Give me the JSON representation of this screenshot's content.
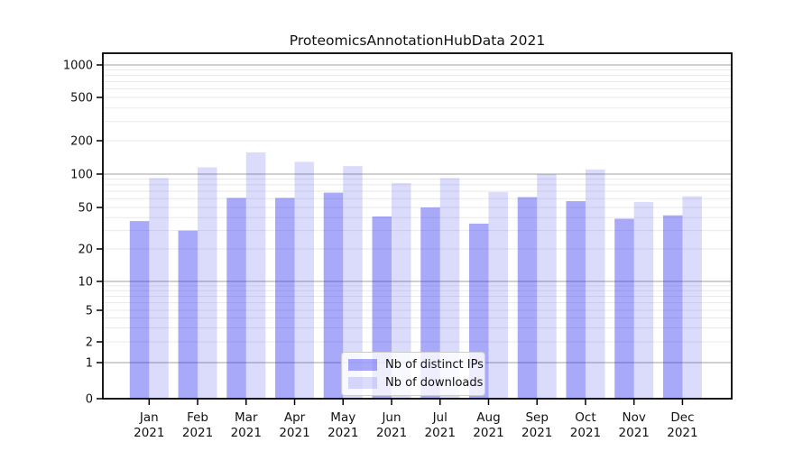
{
  "figure": {
    "background": "#ffffff"
  },
  "chart_data": {
    "type": "bar",
    "title": "ProteomicsAnnotationHubData 2021",
    "categories": [
      "Jan",
      "Feb",
      "Mar",
      "Apr",
      "May",
      "Jun",
      "Jul",
      "Aug",
      "Sep",
      "Oct",
      "Nov",
      "Dec"
    ],
    "year_label": "2021",
    "series": [
      {
        "name": "Nb of distinct IPs",
        "color": "#2828f0",
        "fill_opacity": 0.4,
        "values": [
          37,
          30,
          61,
          61,
          68,
          41,
          50,
          35,
          62,
          57,
          39,
          42
        ]
      },
      {
        "name": "Nb of downloads",
        "color": "#2828f0",
        "fill_opacity": 0.17,
        "values": [
          92,
          115,
          157,
          129,
          118,
          83,
          92,
          69,
          100,
          110,
          56,
          63
        ]
      }
    ],
    "y_axis": {
      "scale": "symlog",
      "ticks": [
        0,
        1,
        2,
        5,
        10,
        20,
        50,
        100,
        200,
        500,
        1000
      ],
      "ylim_top": 1300,
      "major_gridlines": [
        1,
        10,
        100,
        1000
      ],
      "minor_gridlines": [
        2,
        3,
        4,
        5,
        6,
        7,
        8,
        9,
        20,
        30,
        40,
        50,
        60,
        70,
        80,
        90,
        200,
        300,
        400,
        500,
        600,
        700,
        800,
        900
      ],
      "grid": "on"
    },
    "xlabel": "",
    "ylabel": "",
    "legend": {
      "position": "bottom-center",
      "entries": [
        "Nb of distinct IPs",
        "Nb of downloads"
      ]
    },
    "colors": {
      "bar_distinct_ips_rendered": "#a9a9f6",
      "bar_downloads_rendered": "#dcdcfa",
      "major_grid": "#b4b4b4",
      "minor_grid": "#eaeaea",
      "axis": "#000000",
      "text": "#111111"
    }
  }
}
